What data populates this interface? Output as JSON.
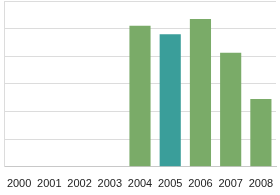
{
  "chart_data": {
    "type": "bar",
    "categories": [
      "2000",
      "2001",
      "2002",
      "2003",
      "2004",
      "2005",
      "2006",
      "2007",
      "2008"
    ],
    "values": [
      null,
      null,
      null,
      null,
      5.1,
      4.8,
      5.35,
      4.13,
      2.45
    ],
    "colors": [
      "#7aab68",
      "#7aab68",
      "#7aab68",
      "#7aab68",
      "#7aab68",
      "#3a9e9a",
      "#7aab68",
      "#7aab68",
      "#7aab68"
    ],
    "ylim": [
      0,
      6
    ],
    "yticks": [
      0,
      1,
      2,
      3,
      4,
      5,
      6
    ],
    "grid": true,
    "tick_labels": "x"
  }
}
